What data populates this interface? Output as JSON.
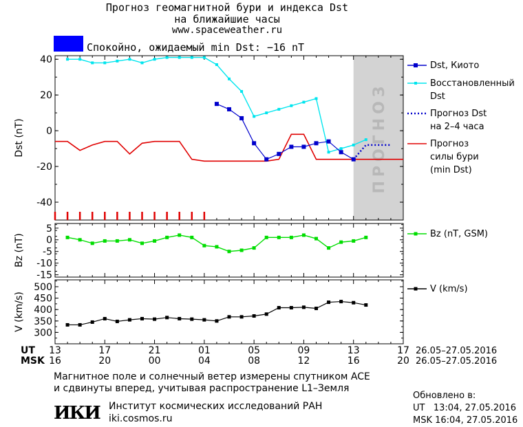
{
  "header": {
    "title_line1": "Прогноз геомагнитной бури и индекса Dst",
    "title_line2": "на ближайшие часы",
    "site": "www.spaceweather.ru"
  },
  "status": {
    "text": "Спокойно, ожидаемый min Dst: −16 nT",
    "color": "#0000ff"
  },
  "legend": {
    "dst_kyoto": "Dst, Киото",
    "dst_restored_1": "Восстановленный",
    "dst_restored_2": "Dst",
    "forecast_1": "Прогноз Dst",
    "forecast_2": "на 2–4 часа",
    "storm_1": "Прогноз",
    "storm_2": "силы бури",
    "storm_3": "(min Dst)",
    "bz": "Bz (nT, GSM)",
    "v": "V (km/s)"
  },
  "axes": {
    "dst_label": "Dst (nT)",
    "bz_label": "Bz (nT)",
    "v_label": "V (km/s)",
    "forecast_zone_label": "ПРОГНОЗ",
    "ut_label": "UT",
    "msk_label": "MSK",
    "ut_date_range": "26.05–27.05.2016",
    "msk_date_range": "26.05–27.05.2016"
  },
  "footer": {
    "line1": "Магнитное поле и солнечный ветер измерены спутником ACE",
    "line2": "и сдвинуты вперед, учитывая распространение L1–Земля",
    "institute": "Институт космических исследований РАН",
    "institute_url": "iki.cosmos.ru",
    "logo_text": "ИКИ",
    "updated_label": "Обновлено в:",
    "updated_ut": "UT   13:04, 27.05.2016",
    "updated_msk": "MSK 16:04, 27.05.2016"
  },
  "colors": {
    "dst_kyoto": "#0000cc",
    "dst_restored": "#00e5ee",
    "forecast": "#0000cc",
    "storm": "#e00000",
    "bz": "#00dd00",
    "v": "#000000",
    "forecast_zone": "#d3d3d3"
  },
  "chart_data": [
    {
      "type": "line",
      "panel": "dst",
      "x_unit": "hours since 13 UT on 26.05.2016",
      "xlim": [
        0,
        28
      ],
      "ylim": [
        -50,
        42
      ],
      "yticks": [
        40,
        20,
        0,
        -20,
        -40
      ],
      "x_ticks": [
        0,
        4,
        8,
        12,
        16,
        20,
        24,
        28
      ],
      "ut_tick_labels": [
        "13",
        "17",
        "21",
        "01",
        "05",
        "09",
        "13",
        "17"
      ],
      "msk_tick_labels": [
        "16",
        "20",
        "00",
        "04",
        "08",
        "12",
        "16",
        "20"
      ],
      "forecast_zone_x": [
        24,
        28
      ],
      "series": [
        {
          "name": "Dst, Киото",
          "x": [
            13,
            14,
            15,
            16,
            17,
            18,
            19,
            20,
            21,
            22,
            23,
            24
          ],
          "y": [
            15,
            12,
            7,
            -7,
            -16,
            -13,
            -9,
            -9,
            -7,
            -6,
            -12,
            -16
          ]
        },
        {
          "name": "Восстановленный Dst",
          "x": [
            1,
            2,
            3,
            4,
            5,
            6,
            7,
            8,
            9,
            10,
            11,
            12,
            13,
            14,
            15,
            16,
            17,
            18,
            19,
            20,
            21,
            22,
            23,
            24,
            25
          ],
          "y": [
            40,
            40,
            38,
            38,
            39,
            40,
            38,
            40,
            41,
            41,
            41,
            41,
            37,
            29,
            22,
            8,
            10,
            12,
            14,
            16,
            18,
            -12,
            -10,
            -8,
            -5
          ]
        },
        {
          "name": "Прогноз Dst на 2–4 часа",
          "x": [
            24,
            25,
            26,
            27
          ],
          "y": [
            -16,
            -8,
            -8,
            -8
          ]
        },
        {
          "name": "Прогноз силы бури (min Dst)",
          "x": [
            0,
            1,
            2,
            3,
            4,
            5,
            6,
            7,
            8,
            9,
            10,
            11,
            12,
            13,
            14,
            15,
            16,
            17,
            18,
            19,
            20,
            21,
            22,
            23,
            24,
            25,
            26,
            27,
            28
          ],
          "y": [
            -6,
            -6,
            -11,
            -8,
            -6,
            -6,
            -13,
            -7,
            -6,
            -6,
            -6,
            -16,
            -17,
            -17,
            -17,
            -17,
            -17,
            -17,
            -16,
            -2,
            -2,
            -16,
            -16,
            -16,
            -16,
            -16,
            -16,
            -16,
            -16
          ]
        }
      ],
      "markers_red_ticks_x": [
        0,
        1,
        2,
        3,
        4,
        5,
        6,
        7,
        8,
        9,
        10,
        11,
        12
      ]
    },
    {
      "type": "line",
      "panel": "bz",
      "ylim": [
        -16,
        7
      ],
      "yticks": [
        5,
        0,
        -5,
        -10,
        -15
      ],
      "series": [
        {
          "name": "Bz (nT, GSM)",
          "x": [
            1,
            2,
            3,
            4,
            5,
            6,
            7,
            8,
            9,
            10,
            11,
            12,
            13,
            14,
            15,
            16,
            17,
            18,
            19,
            20,
            21,
            22,
            23,
            24,
            25
          ],
          "y": [
            1,
            0,
            -1.5,
            -0.5,
            -0.5,
            0,
            -1.5,
            -0.5,
            1,
            2,
            1,
            -2.5,
            -3,
            -5,
            -4.5,
            -3.5,
            1,
            1,
            1,
            2,
            0.5,
            -3.5,
            -1,
            -0.5,
            1
          ]
        }
      ]
    },
    {
      "type": "line",
      "panel": "v",
      "ylim": [
        250,
        530
      ],
      "yticks": [
        500,
        450,
        400,
        350,
        300
      ],
      "series": [
        {
          "name": "V (km/s)",
          "x": [
            1,
            2,
            3,
            4,
            5,
            6,
            7,
            8,
            9,
            10,
            11,
            12,
            13,
            14,
            15,
            16,
            17,
            18,
            19,
            20,
            21,
            22,
            23,
            24,
            25
          ],
          "y": [
            333,
            333,
            345,
            360,
            348,
            355,
            360,
            358,
            365,
            360,
            358,
            355,
            350,
            368,
            368,
            372,
            380,
            408,
            408,
            410,
            405,
            432,
            435,
            430,
            420
          ]
        }
      ]
    }
  ]
}
